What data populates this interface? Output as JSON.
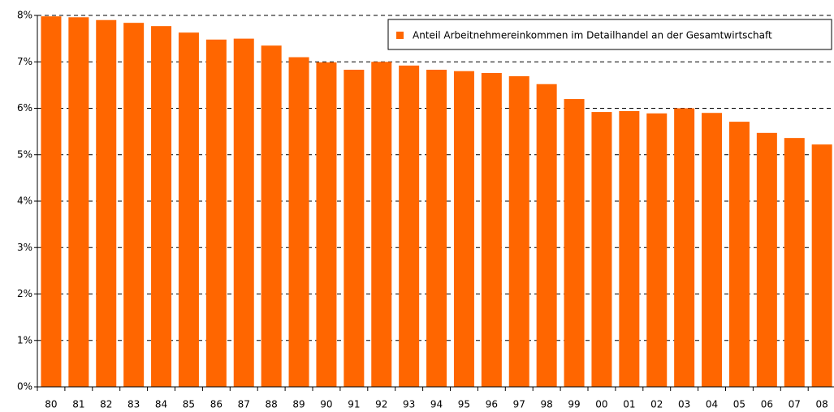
{
  "chart_data": {
    "type": "bar",
    "categories": [
      "80",
      "81",
      "82",
      "83",
      "84",
      "85",
      "86",
      "87",
      "88",
      "89",
      "90",
      "91",
      "92",
      "93",
      "94",
      "95",
      "96",
      "97",
      "98",
      "99",
      "00",
      "01",
      "02",
      "03",
      "04",
      "05",
      "06",
      "07",
      "08"
    ],
    "series": [
      {
        "name": "Anteil Arbeitnehmereinkommen im Detailhandel an der Gesamtwirtschaft",
        "color": "#ff6600",
        "values": [
          7.98,
          7.96,
          7.9,
          7.84,
          7.77,
          7.63,
          7.48,
          7.5,
          7.35,
          7.1,
          6.99,
          6.83,
          7.0,
          6.92,
          6.83,
          6.8,
          6.76,
          6.69,
          6.52,
          6.2,
          5.92,
          5.94,
          5.89,
          6.0,
          5.9,
          5.71,
          5.47,
          5.36,
          5.22
        ]
      }
    ],
    "ylim": [
      0,
      8
    ],
    "yticks": [
      {
        "value": 0,
        "label": "0%"
      },
      {
        "value": 1,
        "label": "1%"
      },
      {
        "value": 2,
        "label": "2%"
      },
      {
        "value": 3,
        "label": "3%"
      },
      {
        "value": 4,
        "label": "4%"
      },
      {
        "value": 5,
        "label": "5%"
      },
      {
        "value": 6,
        "label": "6%"
      },
      {
        "value": 7,
        "label": "7%"
      },
      {
        "value": 8,
        "label": "8%"
      }
    ],
    "grid": true,
    "legend": "upper right"
  }
}
